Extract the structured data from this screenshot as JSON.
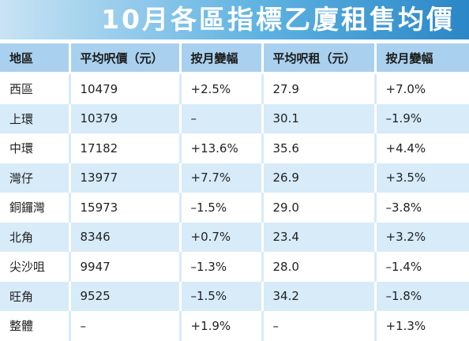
{
  "title": "10月各區指標乙廈租售均價",
  "header": [
    "地區",
    "平均呎價（元）",
    "按月變幅",
    "平均呎租（元）",
    "按月變幅"
  ],
  "rows": [
    [
      "西區",
      "10479",
      "+2.5%",
      "27.9",
      "+7.0%"
    ],
    [
      "上環",
      "10379",
      "–",
      "30.1",
      "–1.9%"
    ],
    [
      "中環",
      "17182",
      "+13.6%",
      "35.6",
      "+4.4%"
    ],
    [
      "灣仔",
      "13977",
      "+7.7%",
      "26.9",
      "+3.5%"
    ],
    [
      "銅鑼灣",
      "15973",
      "–1.5%",
      "29.0",
      "–3.8%"
    ],
    [
      "北角",
      "8346",
      "+0.7%",
      "23.4",
      "+3.2%"
    ],
    [
      "尖沙咀",
      "9947",
      "–1.3%",
      "28.0",
      "–1.4%"
    ],
    [
      "旺角",
      "9525",
      "–1.5%",
      "34.2",
      "–1.8%"
    ],
    [
      "整體",
      "–",
      "+1.9%",
      "–",
      "+1.3%"
    ]
  ]
}
